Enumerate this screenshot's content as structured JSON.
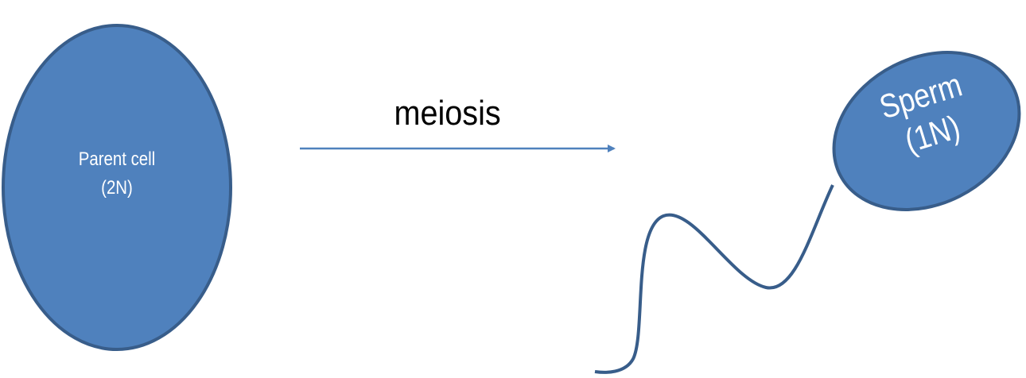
{
  "colors": {
    "cell_fill": "#4F81BD",
    "cell_outline": "#385D8A",
    "arrow": "#4F81BD"
  },
  "parent_cell": {
    "line1": "Parent cell",
    "line2": "(2N)"
  },
  "process": {
    "label": "meiosis"
  },
  "sperm": {
    "line1": "Sperm",
    "line2": "(1N)"
  }
}
